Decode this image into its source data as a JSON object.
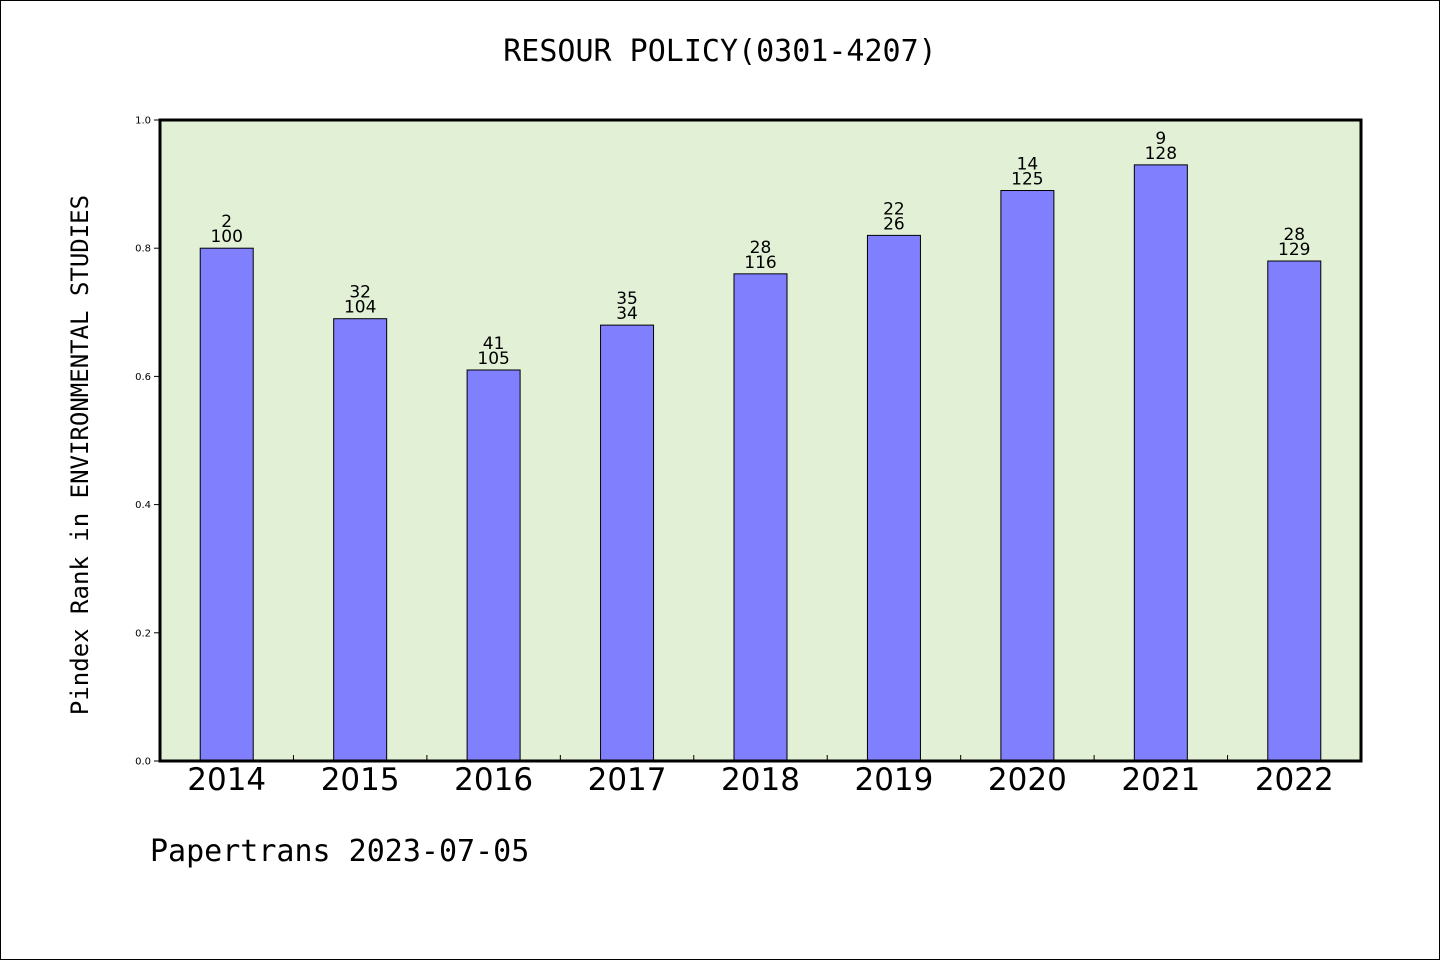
{
  "title": "RESOUR POLICY(0301-4207)",
  "footer": "Papertrans 2023-07-05",
  "chart_data": {
    "type": "bar",
    "title": "RESOUR POLICY(0301-4207)",
    "xlabel": "",
    "ylabel": "Pindex Rank in ENVIRONMENTAL STUDIES",
    "ylim": [
      0,
      1.0
    ],
    "yticks": [
      "0.0",
      "0.2",
      "0.4",
      "0.6",
      "0.8",
      "1.0"
    ],
    "grid": false,
    "categories": [
      "2014",
      "2015",
      "2016",
      "2017",
      "2018",
      "2019",
      "2020",
      "2021",
      "2022"
    ],
    "values": [
      0.8,
      0.69,
      0.61,
      0.68,
      0.76,
      0.82,
      0.89,
      0.93,
      0.78
    ],
    "labels_top": [
      "2",
      "32",
      "41",
      "35",
      "28",
      "22",
      "14",
      "9",
      "28"
    ],
    "labels_bottom": [
      "100",
      "104",
      "105",
      "34",
      "116",
      "26",
      "125",
      "128",
      "129"
    ],
    "colors": {
      "bar": "#8080ff",
      "plot_background": "#e2f0d6",
      "axis": "#000000"
    }
  }
}
